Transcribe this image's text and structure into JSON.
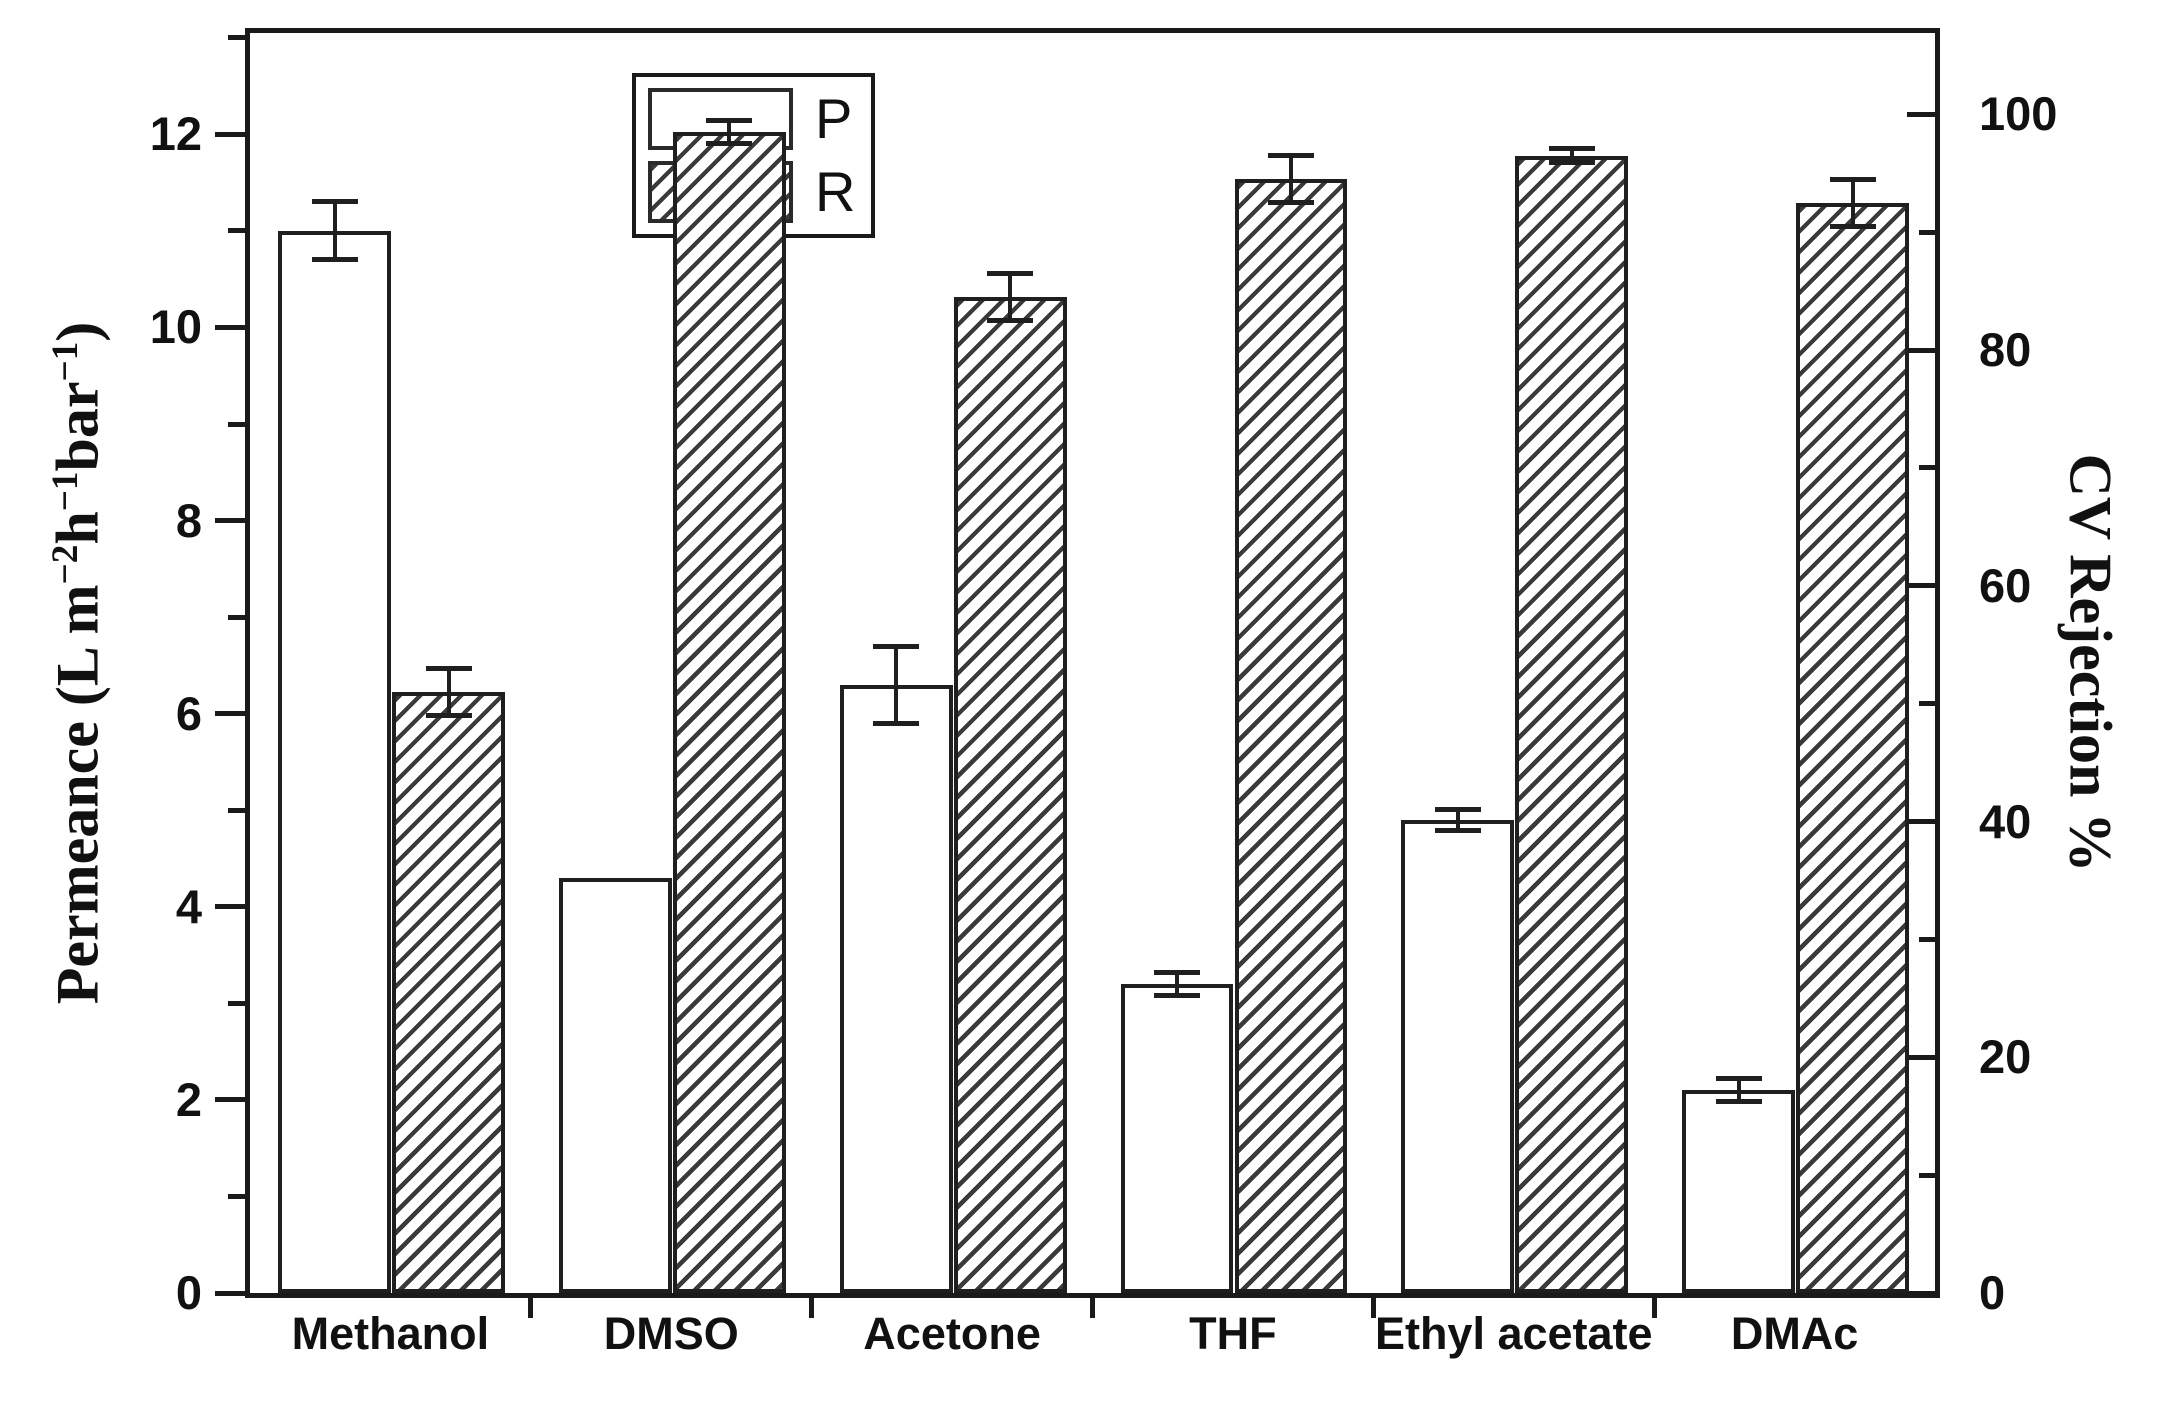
{
  "figure": {
    "background": "#ffffff",
    "ink_color": "#1a1a1a",
    "hatch_color": "#3a3a3a"
  },
  "legend": {
    "entries": [
      {
        "label": "P",
        "style": "open-bar"
      },
      {
        "label": "R",
        "style": "hatched-bar"
      }
    ]
  },
  "chart_data": {
    "type": "bar",
    "title": "",
    "categories": [
      "Methanol",
      "DMSO",
      "Acetone",
      "THF",
      "Ethyl acetate",
      "DMAc"
    ],
    "series": [
      {
        "name": "P",
        "axis": "left",
        "style": "open",
        "values": [
          11.0,
          4.3,
          6.3,
          3.2,
          4.9,
          2.1
        ],
        "errors": [
          0.3,
          null,
          0.4,
          0.12,
          0.11,
          0.12
        ]
      },
      {
        "name": "R",
        "axis": "right",
        "style": "hatch",
        "values": [
          51,
          98.5,
          84.5,
          94.5,
          96.5,
          92.5
        ],
        "errors": [
          2,
          1,
          2,
          2,
          0.6,
          2
        ]
      }
    ],
    "left_axis": {
      "label": "Permeance (L m⁻²h⁻¹bar⁻¹)",
      "label_segments": [
        {
          "text": "Permeance (L m",
          "sup": false
        },
        {
          "text": "−2",
          "sup": true
        },
        {
          "text": "h",
          "sup": false
        },
        {
          "text": "−1",
          "sup": true
        },
        {
          "text": "bar",
          "sup": false
        },
        {
          "text": "−1",
          "sup": true
        },
        {
          "text": ")",
          "sup": false
        }
      ],
      "min": 0,
      "max": 13.05,
      "major_ticks": [
        0,
        2,
        4,
        6,
        8,
        10,
        12
      ],
      "minor_step": 1
    },
    "right_axis": {
      "label": "CV Rejection %",
      "min": 0,
      "max": 106.9,
      "major_ticks": [
        0,
        20,
        40,
        60,
        80,
        100
      ],
      "minor_step": 10
    },
    "x_axis": {
      "boundary_ticks": true
    },
    "legend_position": "top-left-inside",
    "grid": false
  }
}
